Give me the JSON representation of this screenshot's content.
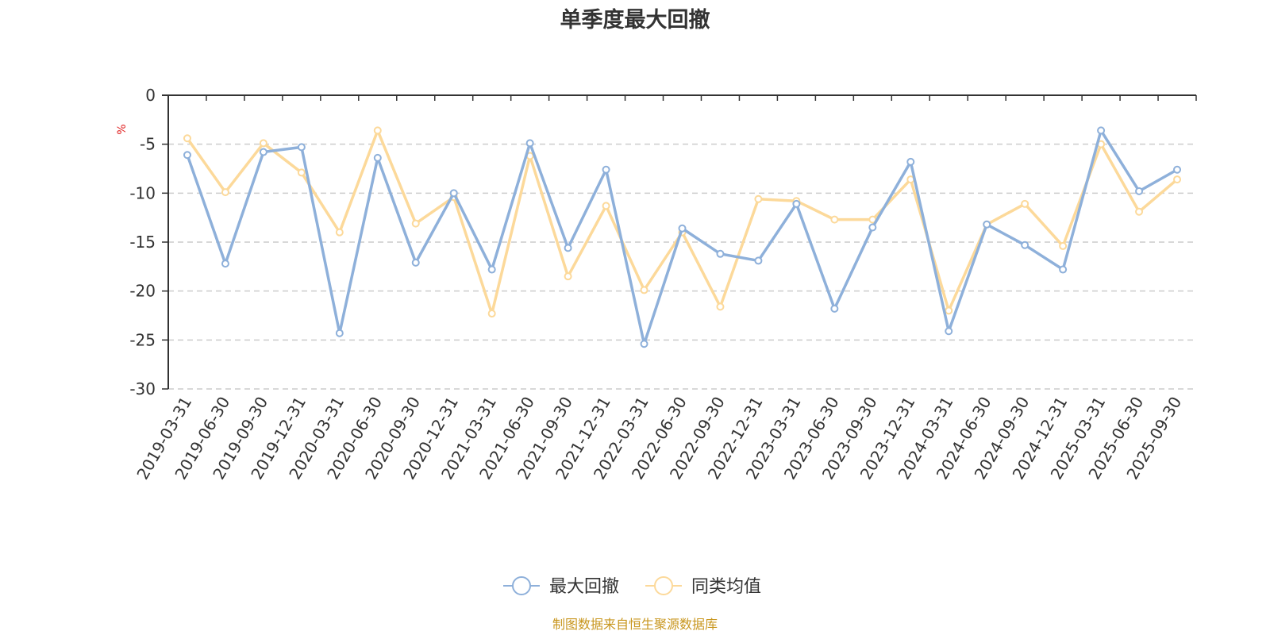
{
  "chart_data": {
    "type": "line",
    "title": "单季度最大回撤",
    "ylabel": "%",
    "ylim": [
      -30,
      0
    ],
    "yticks": [
      0,
      -5,
      -10,
      -15,
      -20,
      -25,
      -30
    ],
    "grid": true,
    "legend_position": "bottom-center",
    "categories": [
      "2019-03-31",
      "2019-06-30",
      "2019-09-30",
      "2019-12-31",
      "2020-03-31",
      "2020-06-30",
      "2020-09-30",
      "2020-12-31",
      "2021-03-31",
      "2021-06-30",
      "2021-09-30",
      "2021-12-31",
      "2022-03-31",
      "2022-06-30",
      "2022-09-30",
      "2022-12-31",
      "2023-03-31",
      "2023-06-30",
      "2023-09-30",
      "2023-12-31",
      "2024-03-31",
      "2024-06-30",
      "2024-09-30",
      "2024-12-31",
      "2025-03-31",
      "2025-06-30",
      "2025-09-30"
    ],
    "series": [
      {
        "name": "最大回撤",
        "color": "#8eb0da",
        "values": [
          -6.1,
          -17.2,
          -5.8,
          -5.3,
          -24.3,
          -6.4,
          -17.1,
          -10.0,
          -17.8,
          -4.9,
          -15.6,
          -7.6,
          -25.4,
          -13.6,
          -16.2,
          -16.9,
          -11.1,
          -21.8,
          -13.5,
          -6.8,
          -24.1,
          -13.2,
          -15.3,
          -17.8,
          -3.6,
          -9.8,
          -7.6
        ]
      },
      {
        "name": "同类均值",
        "color": "#fcd99a",
        "values": [
          -4.4,
          -9.9,
          -4.9,
          -7.9,
          -14.0,
          -3.6,
          -13.1,
          -10.4,
          -22.3,
          -6.2,
          -18.5,
          -11.3,
          -19.9,
          -14.0,
          -21.6,
          -10.6,
          -10.8,
          -12.7,
          -12.7,
          -8.6,
          -22.0,
          -13.2,
          -11.1,
          -15.4,
          -5.0,
          -11.9,
          -8.6
        ]
      }
    ],
    "source_note": "制图数据来自恒生聚源数据库",
    "colors": {
      "axis": "#333333",
      "grid": "#cccccc",
      "unit": "#e02020",
      "source": "#c8961e"
    }
  }
}
